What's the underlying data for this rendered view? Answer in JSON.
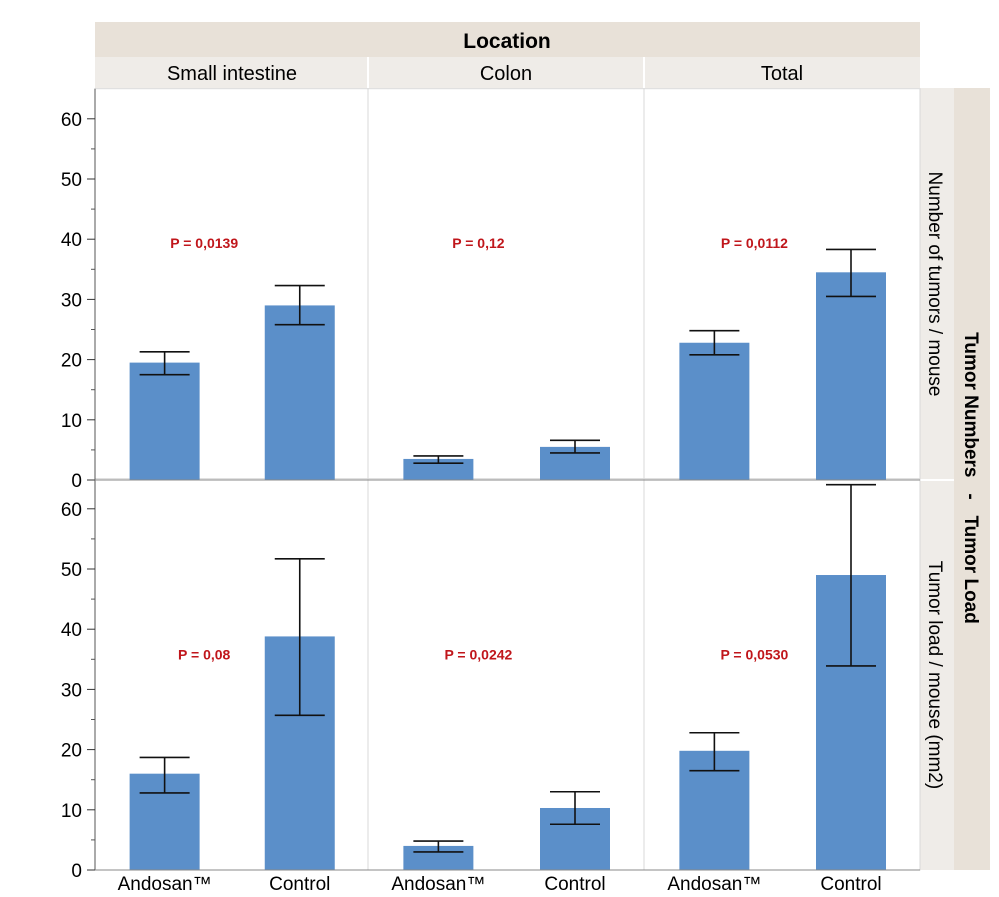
{
  "chart_data": {
    "type": "bar",
    "column_facet": {
      "title": "Location",
      "columns": [
        "Small intestine",
        "Colon",
        "Total"
      ]
    },
    "row_facet": {
      "title": "Tumor Numbers   -   Tumor Load",
      "rows": [
        "Number of tumors / mouse",
        "Tumor load / mouse (mm2)"
      ]
    },
    "categories": [
      "Andosan™",
      "Control"
    ],
    "ylim": [
      0,
      65
    ],
    "yticks": [
      0,
      10,
      20,
      30,
      40,
      50,
      60
    ],
    "grid": false,
    "bar_color": "#5b8fc9",
    "panels": [
      {
        "row": 0,
        "col": 0,
        "values": [
          19.5,
          29.0
        ],
        "error_low": [
          17.5,
          25.8
        ],
        "error_high": [
          21.3,
          32.3
        ],
        "annotation": "P = 0,0139"
      },
      {
        "row": 0,
        "col": 1,
        "values": [
          3.5,
          5.5
        ],
        "error_low": [
          2.8,
          4.5
        ],
        "error_high": [
          4.0,
          6.6
        ],
        "annotation": "P = 0,12"
      },
      {
        "row": 0,
        "col": 2,
        "values": [
          22.8,
          34.5
        ],
        "error_low": [
          20.8,
          30.5
        ],
        "error_high": [
          24.8,
          38.3
        ],
        "annotation": "P = 0,0112"
      },
      {
        "row": 1,
        "col": 0,
        "values": [
          16.0,
          38.8
        ],
        "error_low": [
          12.8,
          25.7
        ],
        "error_high": [
          18.7,
          51.7
        ],
        "annotation": "P = 0,08"
      },
      {
        "row": 1,
        "col": 1,
        "values": [
          4.0,
          10.3
        ],
        "error_low": [
          3.0,
          7.6
        ],
        "error_high": [
          4.8,
          13.0
        ],
        "annotation": "P = 0,0242"
      },
      {
        "row": 1,
        "col": 2,
        "values": [
          19.8,
          49.0
        ],
        "error_low": [
          16.5,
          33.9
        ],
        "error_high": [
          22.8,
          64.0
        ],
        "annotation": "P = 0,0530"
      }
    ]
  }
}
